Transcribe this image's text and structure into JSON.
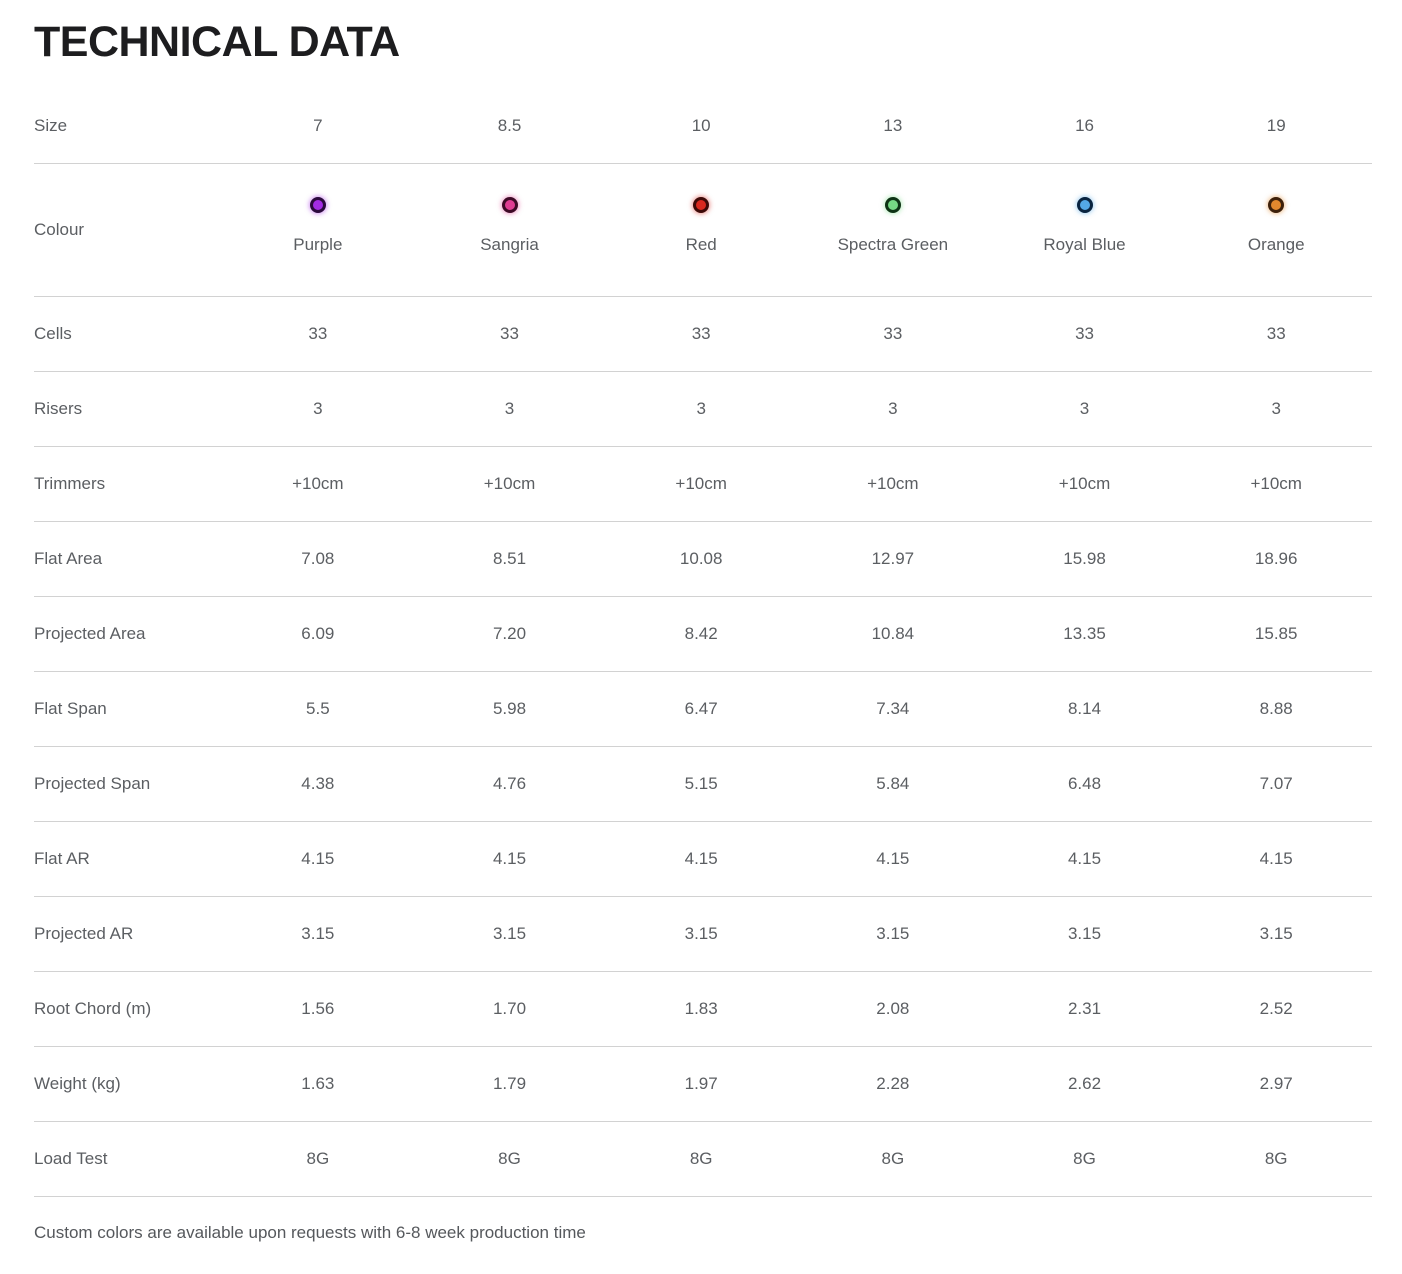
{
  "title": "TECHNICAL DATA",
  "footer_note": "Custom colors are available upon requests with 6-8 week production time",
  "theme": {
    "text_color": "#5b5e62",
    "title_color": "#1d1d1f",
    "border_color": "#d2d2d2",
    "background": "#ffffff"
  },
  "table": {
    "rows": [
      {
        "type": "text",
        "label": "Size",
        "values": [
          "7",
          "8.5",
          "10",
          "13",
          "16",
          "19"
        ]
      },
      {
        "type": "color",
        "label": "Colour",
        "colors": [
          {
            "name": "Purple",
            "fill": "#a32ce4",
            "ring": "#2b0a3d"
          },
          {
            "name": "Sangria",
            "fill": "#de3d92",
            "ring": "#3d0a26"
          },
          {
            "name": "Red",
            "fill": "#d8291f",
            "ring": "#3d0a08"
          },
          {
            "name": "Spectra Green",
            "fill": "#76d984",
            "ring": "#0e3315"
          },
          {
            "name": "Royal Blue",
            "fill": "#54a8e6",
            "ring": "#0a2440"
          },
          {
            "name": "Orange",
            "fill": "#e2882e",
            "ring": "#3d200a"
          }
        ]
      },
      {
        "type": "text",
        "label": "Cells",
        "values": [
          "33",
          "33",
          "33",
          "33",
          "33",
          "33"
        ]
      },
      {
        "type": "text",
        "label": "Risers",
        "values": [
          "3",
          "3",
          "3",
          "3",
          "3",
          "3"
        ]
      },
      {
        "type": "text",
        "label": "Trimmers",
        "values": [
          "+10cm",
          "+10cm",
          "+10cm",
          "+10cm",
          "+10cm",
          "+10cm"
        ]
      },
      {
        "type": "text",
        "label": "Flat Area",
        "values": [
          "7.08",
          "8.51",
          "10.08",
          "12.97",
          "15.98",
          "18.96"
        ]
      },
      {
        "type": "text",
        "label": "Projected Area",
        "values": [
          "6.09",
          "7.20",
          "8.42",
          "10.84",
          "13.35",
          "15.85"
        ]
      },
      {
        "type": "text",
        "label": "Flat Span",
        "values": [
          "5.5",
          "5.98",
          "6.47",
          "7.34",
          "8.14",
          "8.88"
        ]
      },
      {
        "type": "text",
        "label": "Projected Span",
        "values": [
          "4.38",
          "4.76",
          "5.15",
          "5.84",
          "6.48",
          "7.07"
        ]
      },
      {
        "type": "text",
        "label": "Flat AR",
        "values": [
          "4.15",
          "4.15",
          "4.15",
          "4.15",
          "4.15",
          "4.15"
        ]
      },
      {
        "type": "text",
        "label": "Projected AR",
        "values": [
          "3.15",
          "3.15",
          "3.15",
          "3.15",
          "3.15",
          "3.15"
        ]
      },
      {
        "type": "text",
        "label": "Root Chord (m)",
        "values": [
          "1.56",
          "1.70",
          "1.83",
          "2.08",
          "2.31",
          "2.52"
        ]
      },
      {
        "type": "text",
        "label": "Weight (kg)",
        "values": [
          "1.63",
          "1.79",
          "1.97",
          "2.28",
          "2.62",
          "2.97"
        ]
      },
      {
        "type": "text",
        "label": "Load Test",
        "values": [
          "8G",
          "8G",
          "8G",
          "8G",
          "8G",
          "8G"
        ]
      }
    ]
  }
}
